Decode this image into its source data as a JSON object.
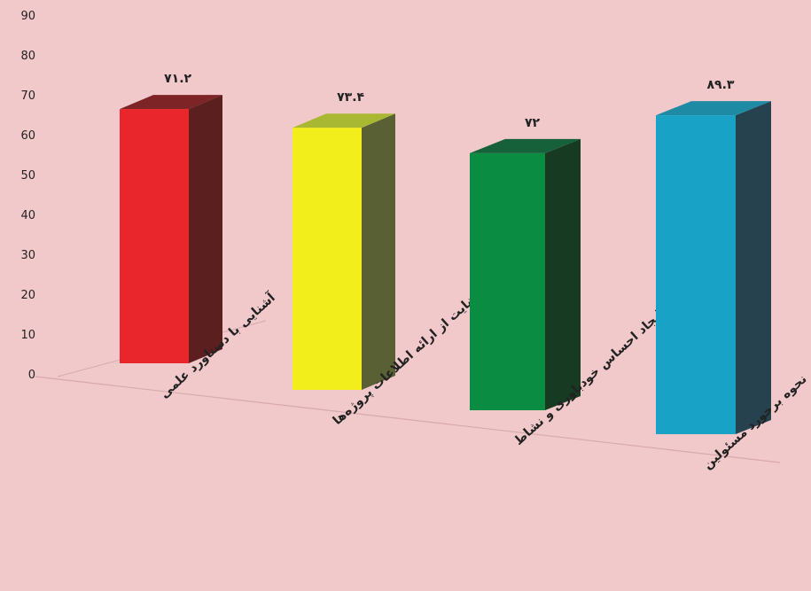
{
  "chart_data": {
    "type": "bar",
    "title": "",
    "xlabel": "",
    "ylabel": "",
    "ylim": [
      0,
      90
    ],
    "yticks": [
      "0",
      "10",
      "20",
      "30",
      "40",
      "50",
      "60",
      "70",
      "80",
      "90"
    ],
    "categories": [
      "آشنایی با دستاورد علمی",
      "رضایت از ارائه اطلاعات پروژه‌ها",
      "ایجاد احساس خودباوری و نشاط",
      "نحوه برخورد مسئولین"
    ],
    "values": [
      71.2,
      73.4,
      72,
      89.3
    ],
    "value_labels": [
      "۷۱.۲",
      "۷۳.۴",
      "۷۲",
      "۸۹.۳"
    ],
    "colors": {
      "bars_front": [
        "#e8262c",
        "#f2ee1c",
        "#0a8c43",
        "#18a3c6"
      ],
      "bars_side": [
        "#5c1f20",
        "#596033",
        "#163b22",
        "#26424f"
      ],
      "bars_top": [
        "#7d2427",
        "#a8b832",
        "#17613a",
        "#1f8aa3"
      ],
      "background": "#f2c9cb"
    },
    "grid": false,
    "legend": "none"
  }
}
